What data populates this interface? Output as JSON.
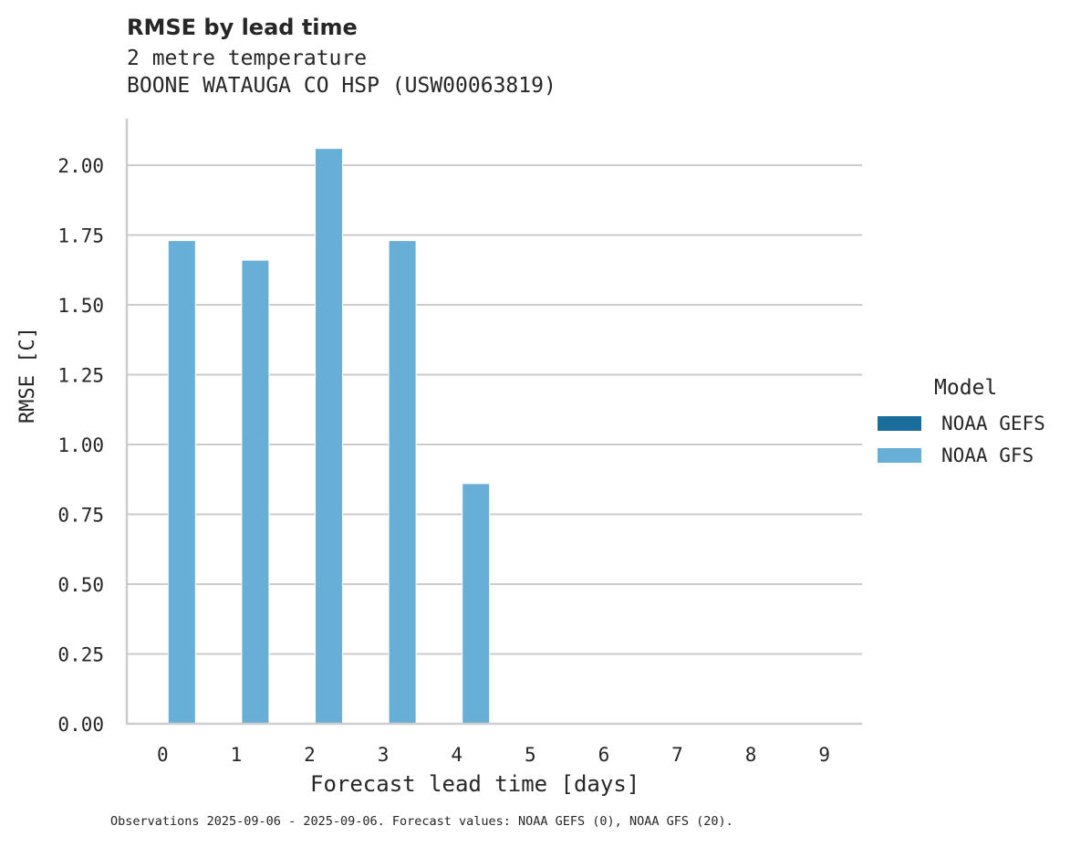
{
  "chart_data": {
    "type": "bar",
    "title": "RMSE by lead time",
    "subtitle_lines": [
      "2 metre temperature",
      "BOONE WATAUGA CO HSP (USW00063819)"
    ],
    "xlabel": "Forecast lead time [days]",
    "ylabel": "RMSE [C]",
    "categories": [
      "0",
      "1",
      "2",
      "3",
      "4",
      "5",
      "6",
      "7",
      "8",
      "9"
    ],
    "yticks": [
      "0.00",
      "0.25",
      "0.50",
      "0.75",
      "1.00",
      "1.25",
      "1.50",
      "1.75",
      "2.00"
    ],
    "ylim": [
      0,
      2.15
    ],
    "grid": "horizontal",
    "legend_title": "Model",
    "legend_position": "right",
    "series": [
      {
        "name": "NOAA GEFS",
        "color": "#1a6c9b",
        "values": [
          null,
          null,
          null,
          null,
          null,
          null,
          null,
          null,
          null,
          null
        ]
      },
      {
        "name": "NOAA GFS",
        "color": "#67afd7",
        "values": [
          1.73,
          1.66,
          2.06,
          1.73,
          0.86,
          null,
          null,
          null,
          null,
          null
        ]
      }
    ],
    "footnote": "Observations 2025-09-06 - 2025-09-06. Forecast values: NOAA GEFS (0), NOAA GFS (20)."
  }
}
